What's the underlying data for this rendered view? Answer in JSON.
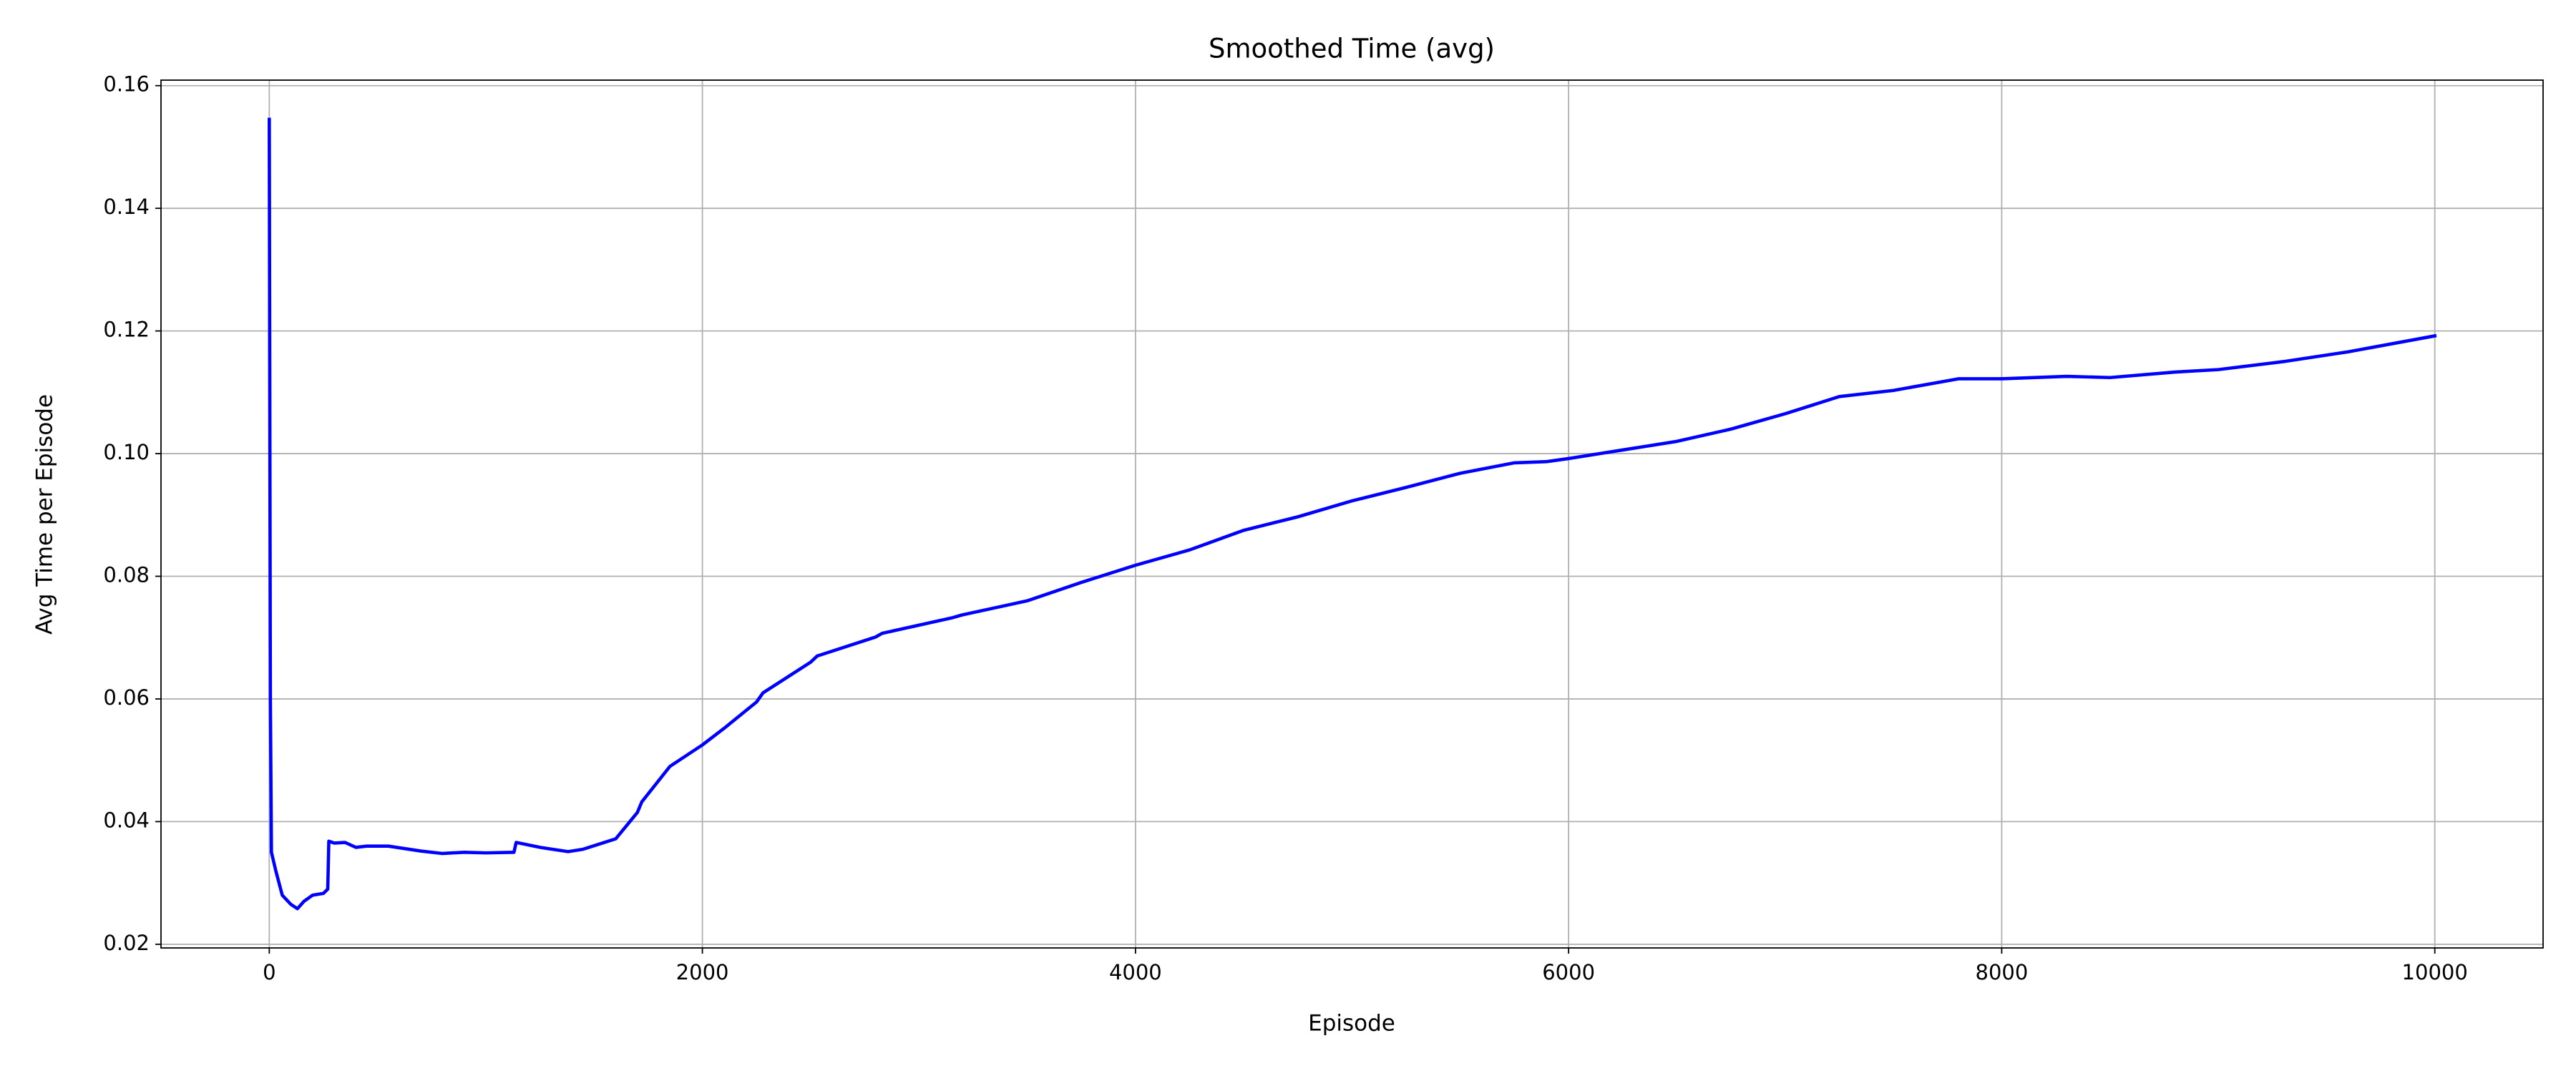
{
  "chart_data": {
    "type": "line",
    "title": "Smoothed Time (avg)",
    "x_label": "Episode",
    "y_label": "Avg Time per Episode",
    "color": "#0000ff",
    "grid": true,
    "xlim": [
      -500,
      10500
    ],
    "ylim": [
      0.0194,
      0.1609
    ],
    "xticks": [
      0,
      2000,
      4000,
      6000,
      8000,
      10000
    ],
    "yticks": [
      0.02,
      0.04,
      0.06,
      0.08,
      {
        "value": 0.1,
        "label": "0.10"
      },
      0.12,
      0.14,
      0.16
    ],
    "x": [
      0,
      5,
      10,
      30,
      60,
      100,
      130,
      160,
      200,
      250,
      270,
      275,
      300,
      350,
      400,
      450,
      550,
      700,
      800,
      900,
      1000,
      1130,
      1140,
      1250,
      1380,
      1450,
      1600,
      1700,
      1720,
      1850,
      2000,
      2100,
      2250,
      2280,
      2500,
      2530,
      2800,
      2830,
      3150,
      3200,
      3500,
      3750,
      4000,
      4250,
      4500,
      4750,
      5000,
      5250,
      5500,
      5750,
      5900,
      6000,
      6250,
      6500,
      6750,
      7000,
      7250,
      7500,
      7800,
      8000,
      8300,
      8500,
      8800,
      9000,
      9300,
      9600,
      10000
    ],
    "values": [
      0.1545,
      0.06,
      0.035,
      0.032,
      0.028,
      0.0265,
      0.0258,
      0.027,
      0.028,
      0.0283,
      0.029,
      0.0368,
      0.0365,
      0.0366,
      0.0358,
      0.036,
      0.036,
      0.0352,
      0.0348,
      0.035,
      0.0349,
      0.035,
      0.0366,
      0.0358,
      0.0351,
      0.0355,
      0.0372,
      0.0415,
      0.0432,
      0.049,
      0.0525,
      0.0552,
      0.0595,
      0.061,
      0.066,
      0.067,
      0.0701,
      0.0707,
      0.0732,
      0.0737,
      0.076,
      0.079,
      0.0818,
      0.0843,
      0.0875,
      0.0897,
      0.0923,
      0.0945,
      0.0968,
      0.0985,
      0.0987,
      0.0992,
      0.1006,
      0.102,
      0.104,
      0.1065,
      0.1093,
      0.1103,
      0.1122,
      0.1122,
      0.1126,
      0.1124,
      0.1133,
      0.1137,
      0.115,
      0.1166,
      0.1192
    ]
  }
}
